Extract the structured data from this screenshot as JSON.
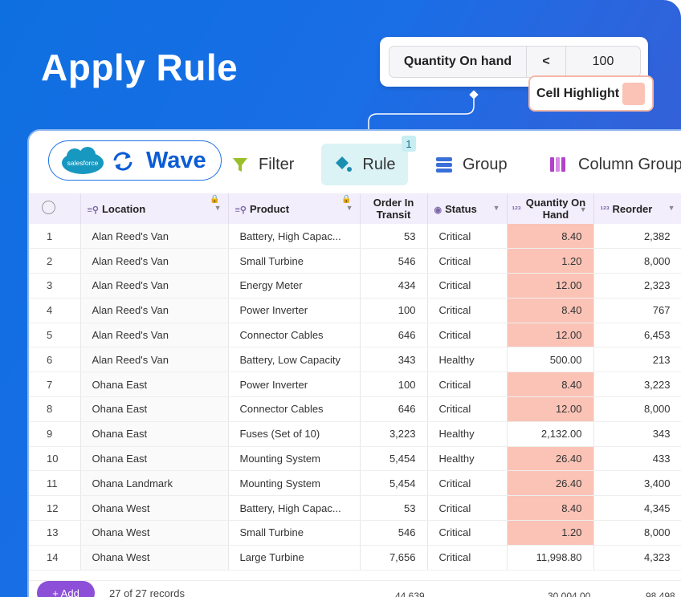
{
  "headline": "Apply Rule",
  "rule": {
    "field": "Quantity On hand",
    "operator": "<",
    "value": "100"
  },
  "highlight": {
    "label": "Cell Highlight",
    "color": "#fbc3b6"
  },
  "brand": {
    "logo_text": "salesforce",
    "name": "Wave"
  },
  "toolbar": {
    "filter": "Filter",
    "rule": "Rule",
    "rule_badge": "1",
    "group": "Group",
    "column_group": "Column Group"
  },
  "columns": [
    "Location",
    "Product",
    "Order In Transit",
    "Status",
    "Quantity On Hand",
    "Reorder"
  ],
  "rows": [
    [
      "1",
      "Alan Reed's Van",
      "Battery, High Capac...",
      "53",
      "Critical",
      "8.40",
      "2,382",
      true
    ],
    [
      "2",
      "Alan Reed's Van",
      "Small Turbine",
      "546",
      "Critical",
      "1.20",
      "8,000",
      true
    ],
    [
      "3",
      "Alan Reed's Van",
      "Energy Meter",
      "434",
      "Critical",
      "12.00",
      "2,323",
      true
    ],
    [
      "4",
      "Alan Reed's Van",
      "Power Inverter",
      "100",
      "Critical",
      "8.40",
      "767",
      true
    ],
    [
      "5",
      "Alan Reed's Van",
      "Connector Cables",
      "646",
      "Critical",
      "12.00",
      "6,453",
      true
    ],
    [
      "6",
      "Alan Reed's Van",
      "Battery, Low Capacity",
      "343",
      "Healthy",
      "500.00",
      "213",
      false
    ],
    [
      "7",
      "Ohana East",
      "Power Inverter",
      "100",
      "Critical",
      "8.40",
      "3,223",
      true
    ],
    [
      "8",
      "Ohana East",
      "Connector Cables",
      "646",
      "Critical",
      "12.00",
      "8,000",
      true
    ],
    [
      "9",
      "Ohana East",
      "Fuses (Set of 10)",
      "3,223",
      "Healthy",
      "2,132.00",
      "343",
      false
    ],
    [
      "10",
      "Ohana East",
      "Mounting System",
      "5,454",
      "Healthy",
      "26.40",
      "433",
      true
    ],
    [
      "11",
      "Ohana Landmark",
      "Mounting System",
      "5,454",
      "Critical",
      "26.40",
      "3,400",
      true
    ],
    [
      "12",
      "Ohana West",
      "Battery, High Capac...",
      "53",
      "Critical",
      "8.40",
      "4,345",
      true
    ],
    [
      "13",
      "Ohana West",
      "Small Turbine",
      "546",
      "Critical",
      "1.20",
      "8,000",
      true
    ],
    [
      "14",
      "Ohana West",
      "Large Turbine",
      "7,656",
      "Critical",
      "11,998.80",
      "4,323",
      false
    ]
  ],
  "footer": {
    "add": "+ Add",
    "records": "27 of 27 records",
    "total_transit": "44,639",
    "total_qty": "30,004.00",
    "total_reorder": "98,498"
  }
}
